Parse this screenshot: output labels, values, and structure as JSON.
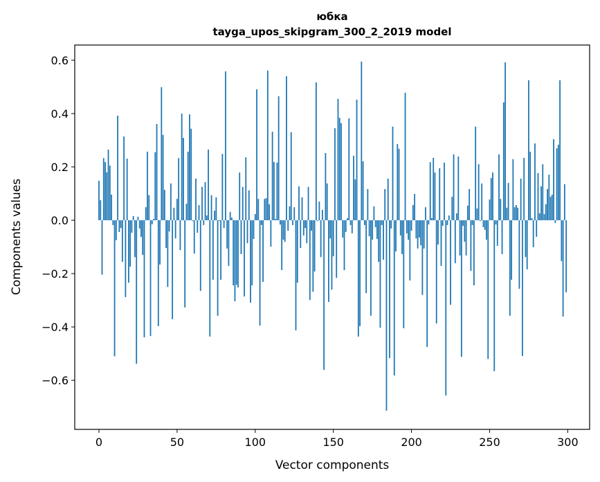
{
  "chart_data": {
    "type": "bar",
    "title": "юбка",
    "subtitle": "tayga_upos_skipgram_300_2_2019 model",
    "xlabel": "Vector components",
    "ylabel": "Components values",
    "xlim": [
      -15.5,
      314
    ],
    "ylim": [
      -0.784,
      0.657
    ],
    "xticks": [
      0,
      50,
      100,
      150,
      200,
      250,
      300
    ],
    "xtick_labels": [
      "0",
      "50",
      "100",
      "150",
      "200",
      "250",
      "300"
    ],
    "yticks": [
      -0.6,
      -0.4,
      -0.2,
      0.0,
      0.2,
      0.4,
      0.6
    ],
    "ytick_labels": [
      "−0.6",
      "−0.4",
      "−0.2",
      "0.0",
      "0.2",
      "0.4",
      "0.6"
    ],
    "grid": false,
    "bar_color": "#1f77b4",
    "values": [
      0.148,
      0.075,
      -0.204,
      0.233,
      0.218,
      0.18,
      0.265,
      0.205,
      0.096,
      -0.018,
      -0.51,
      -0.075,
      0.392,
      -0.044,
      -0.029,
      -0.156,
      0.314,
      -0.288,
      0.231,
      -0.234,
      -0.174,
      -0.047,
      0.016,
      -0.138,
      -0.538,
      0.013,
      -0.031,
      -0.062,
      -0.13,
      -0.439,
      0.049,
      0.257,
      0.094,
      -0.434,
      -0.015,
      0.005,
      0.255,
      0.361,
      -0.397,
      -0.166,
      0.499,
      0.32,
      0.114,
      -0.104,
      -0.25,
      -0.042,
      0.138,
      -0.371,
      0.047,
      -0.068,
      0.08,
      0.233,
      -0.112,
      0.4,
      0.309,
      -0.327,
      0.062,
      0.257,
      0.397,
      0.343,
      -0.003,
      -0.125,
      0.156,
      -0.047,
      0.057,
      -0.265,
      0.125,
      -0.018,
      0.143,
      0.018,
      0.265,
      -0.436,
      0.094,
      -0.223,
      0.036,
      0.086,
      -0.358,
      -0.003,
      -0.223,
      0.249,
      -0.029,
      0.558,
      -0.106,
      -0.171,
      0.031,
      0.01,
      -0.244,
      -0.304,
      -0.242,
      -0.252,
      0.179,
      -0.127,
      0.125,
      -0.286,
      0.236,
      -0.086,
      0.112,
      -0.309,
      -0.244,
      -0.07,
      0.023,
      0.491,
      0.08,
      -0.395,
      -0.018,
      -0.231,
      0.08,
      0.083,
      0.561,
      0.06,
      -0.099,
      0.332,
      0.218,
      0.005,
      0.216,
      0.465,
      -0.016,
      -0.187,
      -0.073,
      -0.081,
      0.54,
      -0.039,
      0.052,
      0.33,
      -0.018,
      0.049,
      -0.413,
      -0.234,
      0.127,
      -0.104,
      0.086,
      -0.057,
      -0.029,
      -0.086,
      0.125,
      -0.299,
      -0.039,
      -0.268,
      -0.192,
      0.517,
      -0.003,
      0.07,
      -0.138,
      0.039,
      -0.561,
      0.252,
      0.138,
      -0.306,
      -0.068,
      -0.26,
      -0.135,
      0.345,
      -0.216,
      0.455,
      0.384,
      0.364,
      -0.065,
      -0.187,
      -0.044,
      0.008,
      0.382,
      -0.018,
      -0.049,
      0.242,
      0.153,
      0.452,
      -0.436,
      -0.397,
      0.595,
      0.221,
      -0.018,
      -0.273,
      0.117,
      -0.06,
      -0.358,
      -0.073,
      0.052,
      -0.026,
      -0.07,
      -0.156,
      -0.403,
      -0.018,
      -0.148,
      0.117,
      -0.714,
      0.156,
      -0.517,
      -0.031,
      0.351,
      -0.582,
      -0.117,
      0.286,
      0.268,
      -0.057,
      -0.127,
      -0.405,
      0.478,
      -0.049,
      -0.073,
      -0.226,
      -0.039,
      0.057,
      0.099,
      -0.068,
      -0.106,
      -0.065,
      -0.094,
      -0.28,
      -0.106,
      0.049,
      -0.475,
      -0.016,
      0.218,
      0.008,
      0.234,
      0.179,
      -0.387,
      -0.091,
      0.195,
      -0.171,
      -0.021,
      0.216,
      -0.657,
      -0.018,
      0.018,
      -0.317,
      0.088,
      0.247,
      -0.161,
      0.026,
      0.239,
      -0.132,
      -0.512,
      -0.021,
      -0.081,
      -0.132,
      0.055,
      0.117,
      -0.19,
      -0.018,
      -0.244,
      0.351,
      0.044,
      0.21,
      -0.003,
      0.138,
      -0.026,
      -0.036,
      -0.073,
      -0.52,
      0.078,
      0.158,
      0.179,
      -0.566,
      -0.016,
      -0.096,
      0.247,
      0.08,
      -0.127,
      0.442,
      0.592,
      0.047,
      0.14,
      -0.358,
      -0.223,
      0.229,
      0.049,
      0.057,
      0.047,
      -0.257,
      0.156,
      -0.509,
      0.234,
      -0.138,
      -0.184,
      0.525,
      0.257,
      0.008,
      -0.101,
      0.288,
      -0.062,
      0.177,
      0.026,
      0.127,
      0.21,
      0.023,
      0.06,
      0.117,
      0.171,
      0.088,
      0.096,
      0.304,
      -0.01,
      0.27,
      0.283,
      0.525,
      -0.153,
      -0.361,
      0.135,
      -0.27
    ]
  }
}
